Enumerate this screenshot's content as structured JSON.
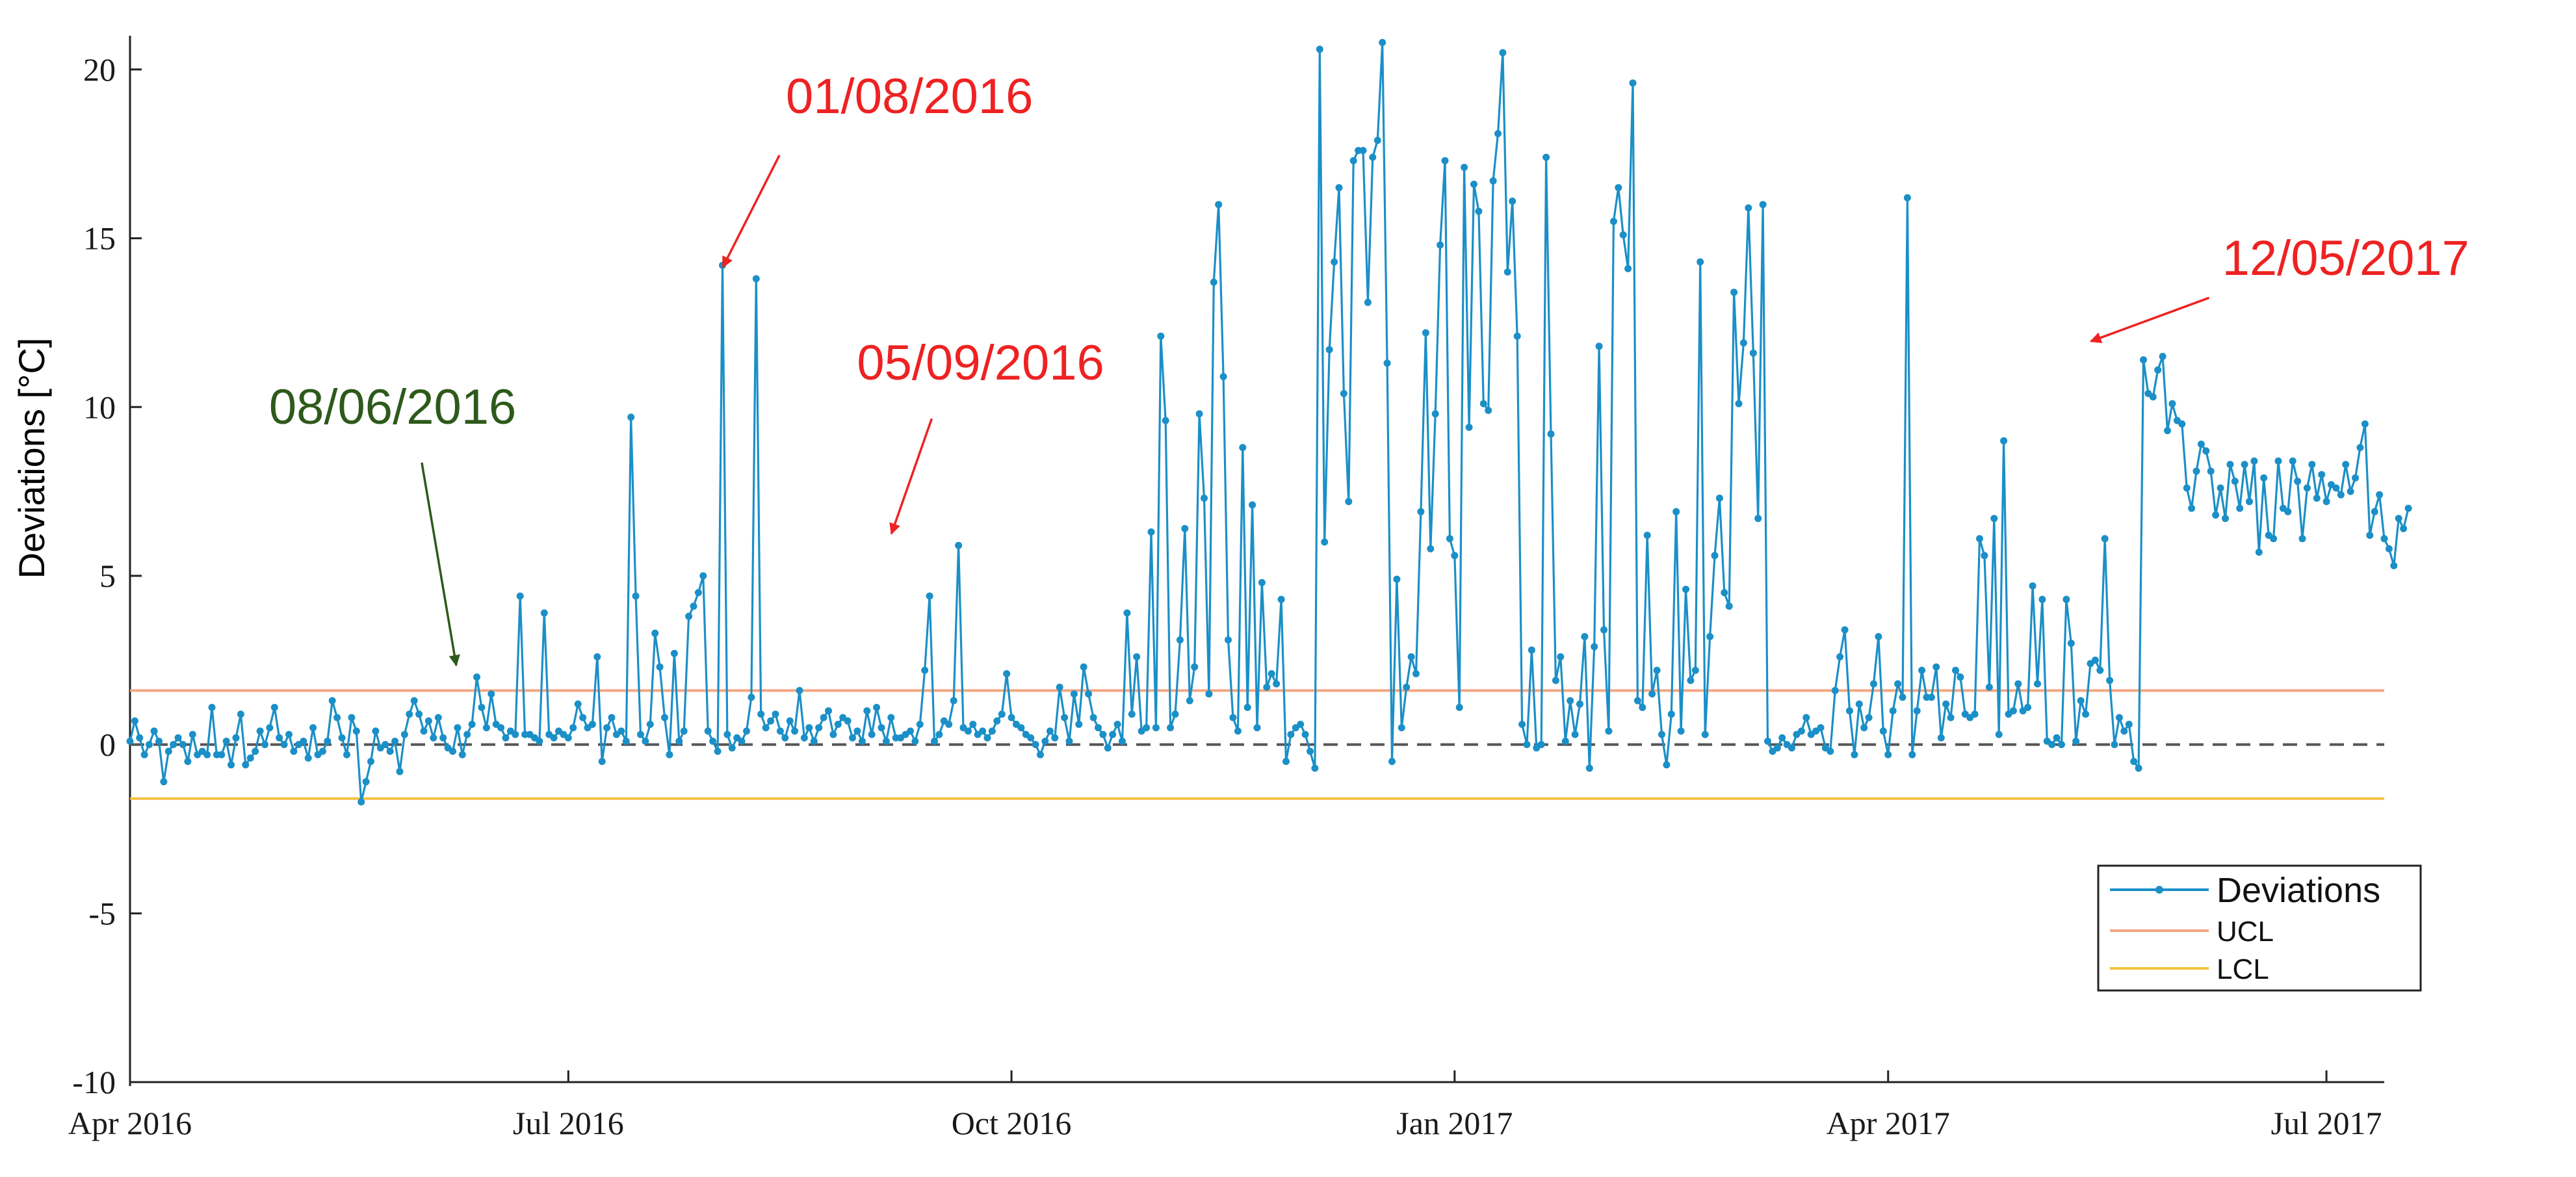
{
  "chart_data": {
    "type": "line",
    "title": "",
    "ylabel": "Deviations [°C]",
    "xlabel": "",
    "ylim": [
      -10,
      21
    ],
    "xlim": [
      "2016-04-01",
      "2017-07-13"
    ],
    "grid": false,
    "y_ticks": [
      -10,
      -5,
      0,
      5,
      10,
      15,
      20
    ],
    "y_tick_labels": [
      "-10",
      "-5",
      "0",
      "5",
      "10",
      "15",
      "20"
    ],
    "x_ticks": [
      "2016-04-01",
      "2016-07-01",
      "2016-10-01",
      "2017-01-01",
      "2017-04-01",
      "2017-07-01"
    ],
    "x_tick_labels": [
      "Apr 2016",
      "Jul 2016",
      "Oct 2016",
      "Jan 2017",
      "Apr 2017",
      "Jul 2017"
    ],
    "zero_line": {
      "value": 0,
      "style": "dashed",
      "color": "#555555"
    },
    "colors": {
      "deviations": "#1b8fc7",
      "ucl": "#f4a582",
      "lcl": "#f5c242",
      "annotation_red": "#ee2222",
      "annotation_green": "#2d5a1b"
    },
    "legend": {
      "position": "bottom-right",
      "entries": [
        {
          "name": "Deviations",
          "color": "#1b8fc7",
          "marker": "dot"
        },
        {
          "name": "UCL",
          "color": "#f4a582"
        },
        {
          "name": "LCL",
          "color": "#f5c242"
        }
      ]
    },
    "control_limits": {
      "ucl": 1.6,
      "lcl": -1.6
    },
    "annotations": [
      {
        "text": "08/06/2016",
        "color": "#2d5a1b",
        "x": "2016-06-08",
        "y": 2.0
      },
      {
        "text": "01/08/2016",
        "color": "#ee2222",
        "x": "2016-08-01",
        "y": 13.8
      },
      {
        "text": "05/09/2016",
        "color": "#ee2222",
        "x": "2016-09-05",
        "y": 5.9
      },
      {
        "text": "12/05/2017",
        "color": "#ee2222",
        "x": "2017-05-12",
        "y": 11.6
      }
    ],
    "series": [
      {
        "name": "Deviations",
        "start_date": "2016-04-01",
        "step_days": 1,
        "values": [
          0.1,
          0.7,
          0.2,
          -0.3,
          0.0,
          0.4,
          0.1,
          -1.1,
          -0.2,
          0.0,
          0.2,
          0.0,
          -0.5,
          0.3,
          -0.3,
          -0.2,
          -0.3,
          1.1,
          -0.3,
          -0.3,
          0.1,
          -0.6,
          0.2,
          0.9,
          -0.6,
          -0.4,
          -0.2,
          0.4,
          0.0,
          0.5,
          1.1,
          0.2,
          0.0,
          0.3,
          -0.2,
          0.0,
          0.1,
          -0.4,
          0.5,
          -0.3,
          -0.2,
          0.1,
          1.3,
          0.8,
          0.2,
          -0.3,
          0.8,
          0.4,
          -1.7,
          -1.1,
          -0.5,
          0.4,
          -0.1,
          0.0,
          -0.2,
          0.1,
          -0.8,
          0.3,
          0.9,
          1.3,
          0.9,
          0.4,
          0.7,
          0.2,
          0.8,
          0.2,
          -0.1,
          -0.2,
          0.5,
          -0.3,
          0.3,
          0.6,
          2.0,
          1.1,
          0.5,
          1.5,
          0.6,
          0.5,
          0.2,
          0.4,
          0.3,
          4.4,
          0.3,
          0.3,
          0.2,
          0.1,
          3.9,
          0.3,
          0.2,
          0.4,
          0.3,
          0.2,
          0.5,
          1.2,
          0.8,
          0.5,
          0.6,
          2.6,
          -0.5,
          0.5,
          0.8,
          0.3,
          0.4,
          0.1,
          9.7,
          4.4,
          0.3,
          0.1,
          0.6,
          3.3,
          2.3,
          0.8,
          -0.3,
          2.7,
          0.1,
          0.4,
          3.8,
          4.1,
          4.5,
          5.0,
          0.4,
          0.1,
          -0.2,
          14.2,
          0.3,
          -0.1,
          0.2,
          0.1,
          0.4,
          1.4,
          13.8,
          0.9,
          0.5,
          0.7,
          0.9,
          0.4,
          0.2,
          0.7,
          0.4,
          1.6,
          0.2,
          0.5,
          0.1,
          0.5,
          0.8,
          1.0,
          0.3,
          0.6,
          0.8,
          0.7,
          0.2,
          0.4,
          0.1,
          1.0,
          0.3,
          1.1,
          0.5,
          0.1,
          0.8,
          0.2,
          0.2,
          0.3,
          0.4,
          0.1,
          0.6,
          2.2,
          4.4,
          0.1,
          0.3,
          0.7,
          0.6,
          1.3,
          5.9,
          0.5,
          0.4,
          0.6,
          0.3,
          0.4,
          0.2,
          0.4,
          0.7,
          0.9,
          2.1,
          0.8,
          0.6,
          0.5,
          0.3,
          0.2,
          0.0,
          -0.3,
          0.1,
          0.4,
          0.2,
          1.7,
          0.8,
          0.1,
          1.5,
          0.6,
          2.3,
          1.5,
          0.8,
          0.5,
          0.3,
          -0.1,
          0.3,
          0.6,
          0.1,
          3.9,
          0.9,
          2.6,
          0.4,
          0.5,
          6.3,
          0.5,
          12.1,
          9.6,
          0.5,
          0.9,
          3.1,
          6.4,
          1.3,
          2.3,
          9.8,
          7.3,
          1.5,
          13.7,
          16.0,
          10.9,
          3.1,
          0.8,
          0.4,
          8.8,
          1.1,
          7.1,
          0.5,
          4.8,
          1.7,
          2.1,
          1.8,
          4.3,
          -0.5,
          0.3,
          0.5,
          0.6,
          0.3,
          -0.2,
          -0.7,
          20.6,
          6.0,
          11.7,
          14.3,
          16.5,
          10.4,
          7.2,
          17.3,
          17.6,
          17.6,
          13.1,
          17.4,
          17.9,
          20.8,
          11.3,
          -0.5,
          4.9,
          0.5,
          1.7,
          2.6,
          2.1,
          6.9,
          12.2,
          5.8,
          9.8,
          14.8,
          17.3,
          6.1,
          5.6,
          1.1,
          17.1,
          9.4,
          16.6,
          15.8,
          10.1,
          9.9,
          16.7,
          18.1,
          20.5,
          14.0,
          16.1,
          12.1,
          0.6,
          0.0,
          2.8,
          -0.1,
          0.0,
          17.4,
          9.2,
          1.9,
          2.6,
          0.1,
          1.3,
          0.3,
          1.2,
          3.2,
          -0.7,
          2.9,
          11.8,
          3.4,
          0.4,
          15.5,
          16.5,
          15.1,
          14.1,
          19.6,
          1.3,
          1.1,
          6.2,
          1.5,
          2.2,
          0.3,
          -0.6,
          0.9,
          6.9,
          0.4,
          4.6,
          1.9,
          2.2,
          14.3,
          0.3,
          3.2,
          5.6,
          7.3,
          4.5,
          4.1,
          13.4,
          10.1,
          11.9,
          15.9,
          11.6,
          6.7,
          16.0,
          0.1,
          -0.2,
          -0.1,
          0.2,
          0.0,
          -0.1,
          0.3,
          0.4,
          0.8,
          0.3,
          0.4,
          0.5,
          -0.1,
          -0.2,
          1.6,
          2.6,
          3.4,
          1.0,
          -0.3,
          1.2,
          0.5,
          0.8,
          1.8,
          3.2,
          0.4,
          -0.3,
          1.0,
          1.8,
          1.4,
          16.2,
          -0.3,
          1.0,
          2.2,
          1.4,
          1.4,
          2.3,
          0.2,
          1.2,
          0.8,
          2.2,
          2.0,
          0.9,
          0.8,
          0.9,
          6.1,
          5.6,
          1.7,
          6.7,
          0.3,
          9.0,
          0.9,
          1.0,
          1.8,
          1.0,
          1.1,
          4.7,
          1.8,
          4.3,
          0.1,
          0.0,
          0.2,
          0.0,
          4.3,
          3.0,
          0.1,
          1.3,
          0.9,
          2.4,
          2.5,
          2.2,
          6.1,
          1.9,
          0.0,
          0.8,
          0.4,
          0.6,
          -0.5,
          -0.7,
          11.4,
          10.4,
          10.3,
          11.1,
          11.5,
          9.3,
          10.1,
          9.6,
          9.5,
          7.6,
          7.0,
          8.1,
          8.9,
          8.7,
          8.1,
          6.8,
          7.6,
          6.7,
          8.3,
          7.8,
          7.0,
          8.3,
          7.2,
          8.4,
          5.7,
          7.9,
          6.2,
          6.1,
          8.4,
          7.0,
          6.9,
          8.4,
          7.8,
          6.1,
          7.6,
          8.3,
          7.3,
          8.0,
          7.2,
          7.7,
          7.6,
          7.4,
          8.3,
          7.5,
          7.9,
          8.8,
          9.5,
          6.2,
          6.9,
          7.4,
          6.1,
          5.8,
          5.3,
          6.7,
          6.4,
          7.0
        ]
      },
      {
        "name": "UCL",
        "constant": 1.6
      },
      {
        "name": "LCL",
        "constant": -1.6
      }
    ]
  }
}
